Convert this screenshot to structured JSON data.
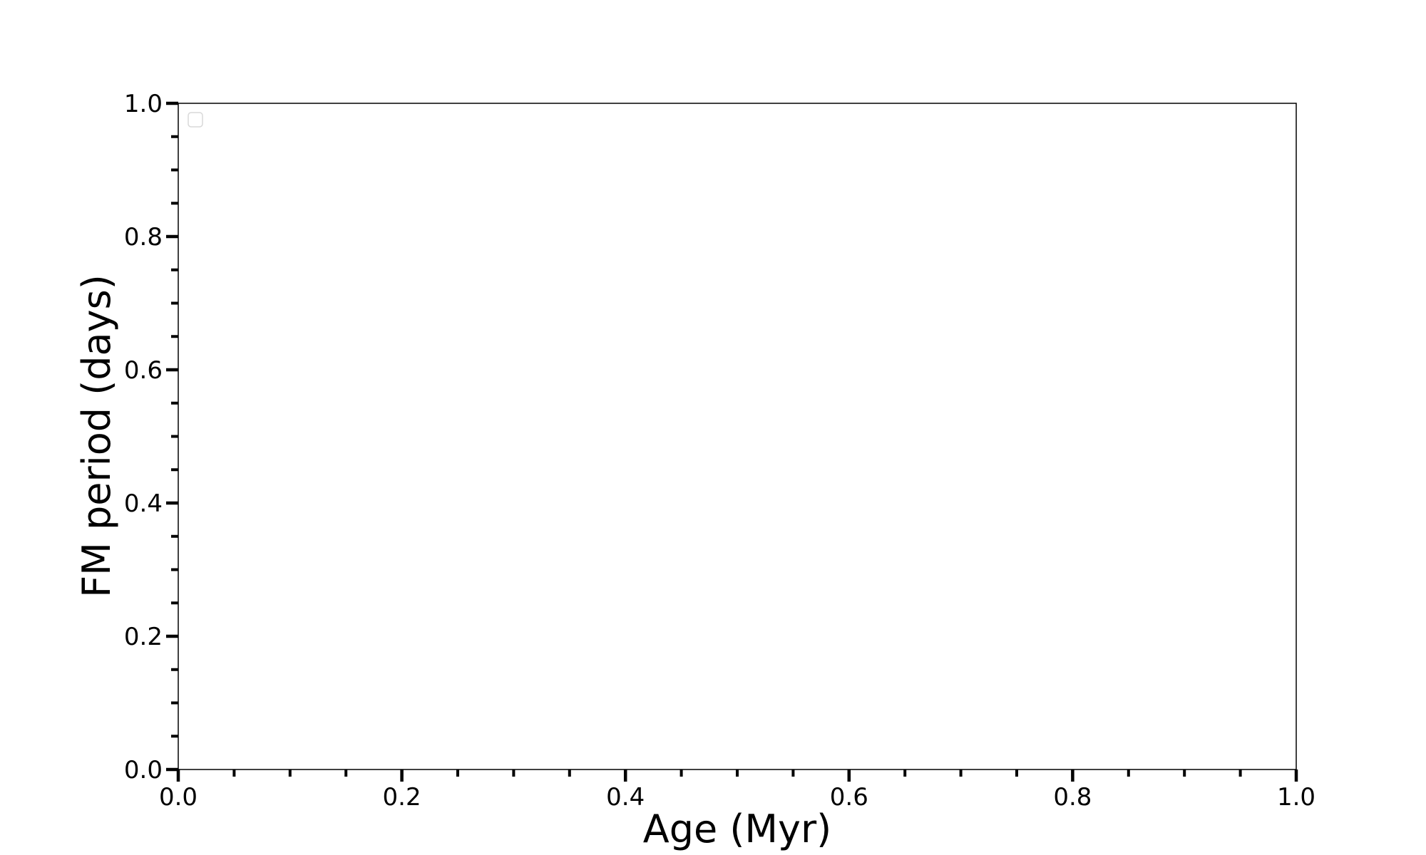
{
  "chart_data": {
    "type": "scatter",
    "title": "",
    "xlabel": "Age (Myr)",
    "ylabel": "FM period (days)",
    "xlim": [
      0.0,
      1.0
    ],
    "ylim": [
      0.0,
      1.0
    ],
    "x_ticks": [
      "0.0",
      "0.2",
      "0.4",
      "0.6",
      "0.8",
      "1.0"
    ],
    "y_ticks": [
      "0.0",
      "0.2",
      "0.4",
      "0.6",
      "0.8",
      "1.0"
    ],
    "x_minor_step": 0.05,
    "y_minor_step": 0.05,
    "grid": false,
    "legend": {
      "placement": "top-left",
      "entries": []
    },
    "series": []
  }
}
